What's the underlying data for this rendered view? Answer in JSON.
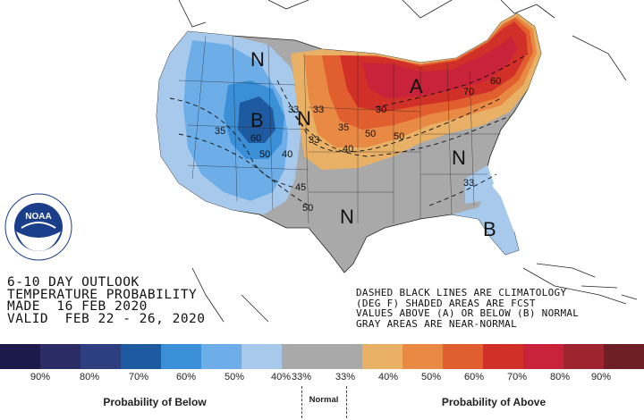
{
  "map": {
    "region_letters": [
      {
        "text": "N"
      },
      {
        "text": "B"
      },
      {
        "text": "N"
      },
      {
        "text": "A"
      },
      {
        "text": "N"
      },
      {
        "text": "N"
      },
      {
        "text": "B"
      }
    ],
    "contour_labels": [
      "33",
      "33",
      "35",
      "35",
      "40",
      "40",
      "45",
      "50",
      "50",
      "50",
      "60",
      "30",
      "33",
      "70",
      "60",
      "33",
      "50"
    ]
  },
  "title_lines": [
    "6-10 DAY OUTLOOK",
    "TEMPERATURE PROBABILITY",
    "MADE  16 FEB 2020",
    "VALID  FEB 22 - 26, 2020"
  ],
  "notes_lines": [
    "DASHED BLACK LINES ARE CLIMATOLOGY",
    "(DEG F) SHADED AREAS ARE FCST",
    "VALUES ABOVE (A) OR BELOW (B) NORMAL",
    "GRAY AREAS ARE NEAR-NORMAL"
  ],
  "logo": {
    "text": "NOAA",
    "ring_text": "NATIONAL OCEANIC AND ATMOSPHERIC ADMINISTRATION · U.S. DEPARTMENT OF COMMERCE"
  },
  "legend": {
    "colors": [
      "#1c1a4b",
      "#2b2b66",
      "#2e3f80",
      "#1e5aa0",
      "#3a8fd6",
      "#6eaee8",
      "#a6c9ec",
      "#a9a9a9",
      "#a9a9a9",
      "#e9b166",
      "#e88a44",
      "#e15f2e",
      "#d13028",
      "#c8233a",
      "#9e2530",
      "#6e1f25"
    ],
    "labels": [
      "90%",
      "80%",
      "70%",
      "60%",
      "50%",
      "40%",
      "33%",
      "33%",
      "40%",
      "50%",
      "60%",
      "70%",
      "80%",
      "90%"
    ],
    "below_caption": "Probability of Below",
    "normal_caption": "Normal",
    "above_caption": "Probability of Above"
  }
}
